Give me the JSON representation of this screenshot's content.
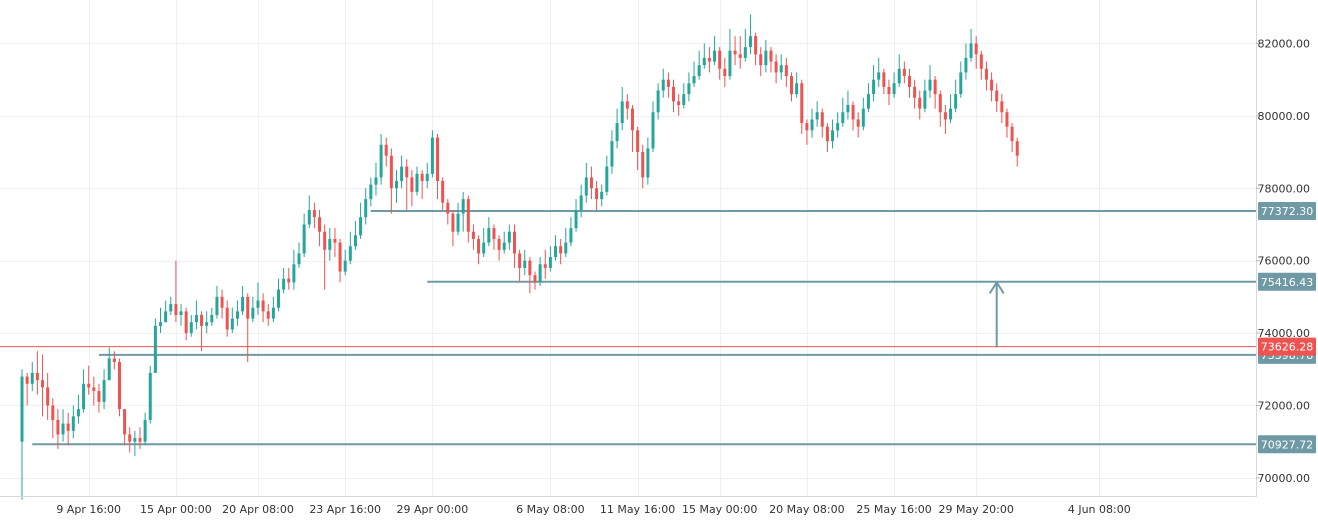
{
  "chart_data": {
    "type": "candlestick",
    "y_axis": {
      "min": 69500,
      "max": 83200,
      "ticks": [
        70000,
        72000,
        74000,
        76000,
        78000,
        80000,
        82000
      ],
      "tick_labels": [
        "70000.00",
        "72000.00",
        "74000.00",
        "76000.00",
        "78000.00",
        "80000.00",
        "82000.00"
      ],
      "position": "right"
    },
    "x_axis": {
      "ticks": [
        {
          "label": "9 Apr 16:00",
          "index": 13
        },
        {
          "label": "15 Apr 00:00",
          "index": 30
        },
        {
          "label": "20 Apr 08:00",
          "index": 46
        },
        {
          "label": "23 Apr 16:00",
          "index": 63
        },
        {
          "label": "29 Apr 00:00",
          "index": 80
        },
        {
          "label": "6 May 08:00",
          "index": 103
        },
        {
          "label": "11 May 16:00",
          "index": 120
        },
        {
          "label": "15 May 00:00",
          "index": 136
        },
        {
          "label": "20 May 08:00",
          "index": 153
        },
        {
          "label": "25 May 16:00",
          "index": 170
        },
        {
          "label": "29 May 20:00",
          "index": 186
        },
        {
          "label": "4 Jun 08:00",
          "index": 210
        }
      ]
    },
    "grid": true,
    "colors": {
      "up": "#26a69a",
      "down": "#ef5350",
      "level_line": "#6f9aa5",
      "current_price": "#ef5350",
      "grid": "#eef0f3",
      "axis_text": "#333333"
    },
    "horizontal_levels": [
      {
        "value": 77372.3,
        "label": "77372.30",
        "from_index": 68
      },
      {
        "value": 75416.43,
        "label": "75416.43",
        "from_index": 79
      },
      {
        "value": 73398.78,
        "label": "73398.78",
        "from_index": 15
      },
      {
        "value": 70927.72,
        "label": "70927.72",
        "from_index": 2
      }
    ],
    "current_price": {
      "value": 73626.28,
      "label": "73626.28"
    },
    "arrow": {
      "index": 190,
      "from": 73600,
      "to": 75400
    },
    "candles": [
      [
        71000,
        72800,
        73000,
        69400
      ],
      [
        72800,
        72600,
        72900,
        72000
      ],
      [
        72600,
        72900,
        73200,
        72400
      ],
      [
        72900,
        72700,
        73500,
        72300
      ],
      [
        72700,
        72500,
        73400,
        71700
      ],
      [
        72500,
        72000,
        72900,
        71600
      ],
      [
        72000,
        71600,
        72200,
        71100
      ],
      [
        71600,
        71200,
        71900,
        70800
      ],
      [
        71200,
        71500,
        71900,
        71000
      ],
      [
        71500,
        71300,
        71800,
        70900
      ],
      [
        71300,
        71700,
        72000,
        71100
      ],
      [
        71700,
        71900,
        72300,
        71500
      ],
      [
        71900,
        72600,
        73000,
        71800
      ],
      [
        72600,
        72500,
        73100,
        72300
      ],
      [
        72500,
        72400,
        72800,
        72000
      ],
      [
        72400,
        72100,
        72600,
        71800
      ],
      [
        72100,
        72700,
        73000,
        71900
      ],
      [
        72700,
        73300,
        73600,
        72700
      ],
      [
        73300,
        73200,
        73500,
        73000
      ],
      [
        73200,
        71900,
        73300,
        71700
      ],
      [
        71900,
        71200,
        71900,
        70900
      ],
      [
        71200,
        71000,
        71400,
        70700
      ],
      [
        71000,
        71100,
        71300,
        70600
      ],
      [
        71100,
        71000,
        71400,
        70800
      ],
      [
        71000,
        71600,
        71800,
        70900
      ],
      [
        71600,
        72900,
        73100,
        71500
      ],
      [
        72900,
        74200,
        74400,
        72900
      ],
      [
        74200,
        74300,
        74700,
        74000
      ],
      [
        74300,
        74600,
        74900,
        74300
      ],
      [
        74600,
        74800,
        75000,
        74500
      ],
      [
        74800,
        74500,
        76000,
        74300
      ],
      [
        74500,
        74600,
        74800,
        74200
      ],
      [
        74600,
        74000,
        74700,
        73800
      ],
      [
        74000,
        74300,
        74500,
        73900
      ],
      [
        74300,
        74500,
        74900,
        74100
      ],
      [
        74500,
        74200,
        74600,
        73500
      ],
      [
        74200,
        74300,
        74600,
        74000
      ],
      [
        74300,
        74500,
        74700,
        74200
      ],
      [
        74500,
        75000,
        75300,
        74400
      ],
      [
        75000,
        74700,
        75200,
        74400
      ],
      [
        74700,
        74100,
        74900,
        73900
      ],
      [
        74100,
        74400,
        74700,
        74000
      ],
      [
        74400,
        74600,
        74900,
        74200
      ],
      [
        74600,
        75000,
        75300,
        74500
      ],
      [
        75000,
        74400,
        75100,
        73200
      ],
      [
        74400,
        74700,
        75000,
        74300
      ],
      [
        74700,
        74900,
        75400,
        74500
      ],
      [
        74900,
        74600,
        75100,
        74300
      ],
      [
        74600,
        74400,
        74800,
        74200
      ],
      [
        74400,
        74700,
        75000,
        74300
      ],
      [
        74700,
        75200,
        75500,
        74600
      ],
      [
        75200,
        75500,
        75800,
        75100
      ],
      [
        75500,
        75400,
        75800,
        75200
      ],
      [
        75400,
        75900,
        76300,
        75200
      ],
      [
        75900,
        76200,
        76500,
        75800
      ],
      [
        76200,
        77000,
        77300,
        76100
      ],
      [
        77000,
        77400,
        77800,
        76900
      ],
      [
        77400,
        77200,
        77600,
        76900
      ],
      [
        77200,
        76800,
        77400,
        76400
      ],
      [
        76800,
        76300,
        77000,
        75200
      ],
      [
        76300,
        76600,
        76900,
        76000
      ],
      [
        76600,
        76500,
        76900,
        76100
      ],
      [
        76500,
        75700,
        76600,
        75400
      ],
      [
        75700,
        76000,
        76300,
        75600
      ],
      [
        76000,
        76400,
        76800,
        75900
      ],
      [
        76400,
        76700,
        77100,
        76300
      ],
      [
        76700,
        77200,
        77600,
        76600
      ],
      [
        77200,
        77700,
        78000,
        77000
      ],
      [
        77700,
        78100,
        78300,
        77500
      ],
      [
        78100,
        78300,
        78700,
        77800
      ],
      [
        78300,
        79200,
        79500,
        78100
      ],
      [
        79200,
        78900,
        79400,
        78600
      ],
      [
        78900,
        78000,
        79100,
        77300
      ],
      [
        78000,
        78200,
        78500,
        77600
      ],
      [
        78200,
        78600,
        78900,
        78000
      ],
      [
        78600,
        78300,
        78800,
        77400
      ],
      [
        78300,
        77900,
        78500,
        77500
      ],
      [
        77900,
        78400,
        78600,
        77800
      ],
      [
        78400,
        78200,
        78500,
        77700
      ],
      [
        78200,
        78400,
        78700,
        78000
      ],
      [
        78400,
        79400,
        79600,
        78300
      ],
      [
        79400,
        78200,
        79500,
        77700
      ],
      [
        78200,
        77600,
        78300,
        77400
      ],
      [
        77600,
        77300,
        77700,
        77000
      ],
      [
        77300,
        76800,
        77400,
        76400
      ],
      [
        76800,
        77300,
        77600,
        76700
      ],
      [
        77300,
        77700,
        77900,
        76800
      ],
      [
        77700,
        76800,
        77800,
        76500
      ],
      [
        76800,
        76600,
        77000,
        76300
      ],
      [
        76600,
        76200,
        76700,
        75900
      ],
      [
        76200,
        76500,
        76900,
        76100
      ],
      [
        76500,
        76900,
        77200,
        76400
      ],
      [
        76900,
        76600,
        77000,
        76300
      ],
      [
        76600,
        76300,
        76700,
        76000
      ],
      [
        76300,
        76500,
        76800,
        76200
      ],
      [
        76500,
        76800,
        77000,
        76300
      ],
      [
        76800,
        76200,
        77000,
        75800
      ],
      [
        76200,
        75800,
        76300,
        75400
      ],
      [
        75800,
        76000,
        76300,
        75600
      ],
      [
        76000,
        75600,
        76100,
        75100
      ],
      [
        75600,
        75400,
        75700,
        75200
      ],
      [
        75400,
        75900,
        76100,
        75300
      ],
      [
        75900,
        75800,
        76300,
        75500
      ],
      [
        75800,
        76100,
        76400,
        75700
      ],
      [
        76100,
        76400,
        76700,
        76000
      ],
      [
        76400,
        76200,
        76600,
        75900
      ],
      [
        76200,
        76500,
        76900,
        76100
      ],
      [
        76500,
        76900,
        77200,
        76400
      ],
      [
        76900,
        77400,
        77700,
        76800
      ],
      [
        77400,
        77800,
        78100,
        77200
      ],
      [
        77800,
        78300,
        78700,
        77600
      ],
      [
        78300,
        78000,
        78600,
        77700
      ],
      [
        78000,
        77700,
        78200,
        77400
      ],
      [
        77700,
        77900,
        78100,
        77500
      ],
      [
        77900,
        78600,
        78900,
        77800
      ],
      [
        78600,
        79300,
        79600,
        78400
      ],
      [
        79300,
        79800,
        80200,
        79100
      ],
      [
        79800,
        80400,
        80800,
        79600
      ],
      [
        80400,
        80200,
        80600,
        79900
      ],
      [
        80200,
        79600,
        80300,
        79000
      ],
      [
        79600,
        79000,
        79700,
        78500
      ],
      [
        79000,
        78300,
        79200,
        78000
      ],
      [
        78300,
        79100,
        79400,
        78100
      ],
      [
        79100,
        80100,
        80400,
        79000
      ],
      [
        80100,
        80700,
        80900,
        79900
      ],
      [
        80700,
        81000,
        81300,
        80500
      ],
      [
        81000,
        80800,
        81200,
        80500
      ],
      [
        80800,
        80400,
        81000,
        80100
      ],
      [
        80400,
        80300,
        80600,
        80000
      ],
      [
        80300,
        80600,
        80900,
        80200
      ],
      [
        80600,
        80900,
        81200,
        80400
      ],
      [
        80900,
        81100,
        81500,
        80800
      ],
      [
        81100,
        81400,
        81800,
        81000
      ],
      [
        81400,
        81600,
        82000,
        81300
      ],
      [
        81600,
        81500,
        81900,
        81200
      ],
      [
        81500,
        81800,
        82200,
        81400
      ],
      [
        81800,
        81300,
        81900,
        81000
      ],
      [
        81300,
        81100,
        81600,
        80800
      ],
      [
        81100,
        81800,
        82400,
        81000
      ],
      [
        81800,
        81700,
        82200,
        81400
      ],
      [
        81700,
        81600,
        82200,
        81300
      ],
      [
        81600,
        81900,
        82400,
        81500
      ],
      [
        81900,
        82200,
        82800,
        81700
      ],
      [
        82200,
        81700,
        82300,
        81400
      ],
      [
        81700,
        81400,
        81900,
        81100
      ],
      [
        81400,
        81800,
        82100,
        81200
      ],
      [
        81800,
        81500,
        81900,
        81200
      ],
      [
        81500,
        81200,
        81700,
        80900
      ],
      [
        81200,
        81400,
        81700,
        81000
      ],
      [
        81400,
        81100,
        81600,
        80800
      ],
      [
        81100,
        80600,
        81200,
        80400
      ],
      [
        80600,
        80900,
        81200,
        80500
      ],
      [
        80900,
        79800,
        81000,
        79500
      ],
      [
        79800,
        79600,
        79900,
        79200
      ],
      [
        79600,
        79900,
        80200,
        79400
      ],
      [
        79900,
        80100,
        80400,
        79700
      ],
      [
        80100,
        79700,
        80200,
        79400
      ],
      [
        79700,
        79300,
        79800,
        79000
      ],
      [
        79300,
        79600,
        79900,
        79100
      ],
      [
        79600,
        79800,
        80100,
        79400
      ],
      [
        79800,
        80100,
        80500,
        79700
      ],
      [
        80100,
        80300,
        80700,
        79900
      ],
      [
        80300,
        79900,
        80400,
        79600
      ],
      [
        79900,
        79700,
        80100,
        79400
      ],
      [
        79700,
        80200,
        80500,
        79600
      ],
      [
        80200,
        80600,
        80900,
        80100
      ],
      [
        80600,
        81000,
        81400,
        80400
      ],
      [
        81000,
        81200,
        81600,
        80800
      ],
      [
        81200,
        80800,
        81300,
        80600
      ],
      [
        80800,
        80600,
        81000,
        80300
      ],
      [
        80600,
        80900,
        81200,
        80500
      ],
      [
        80900,
        81300,
        81700,
        80800
      ],
      [
        81300,
        81100,
        81500,
        80900
      ],
      [
        81100,
        80800,
        81300,
        80500
      ],
      [
        80800,
        80500,
        81000,
        80200
      ],
      [
        80500,
        80200,
        80700,
        79900
      ],
      [
        80200,
        80700,
        81000,
        80100
      ],
      [
        80700,
        81000,
        81400,
        80500
      ],
      [
        81000,
        80600,
        81100,
        80200
      ],
      [
        80600,
        80100,
        80700,
        79700
      ],
      [
        80100,
        79900,
        80300,
        79500
      ],
      [
        79900,
        80200,
        80600,
        79800
      ],
      [
        80200,
        80600,
        81000,
        80100
      ],
      [
        80600,
        81200,
        81500,
        80500
      ],
      [
        81200,
        81600,
        82000,
        81000
      ],
      [
        81600,
        82000,
        82400,
        81500
      ],
      [
        82000,
        81700,
        82200,
        81300
      ],
      [
        81700,
        81300,
        81800,
        81000
      ],
      [
        81300,
        81000,
        81500,
        80700
      ],
      [
        81000,
        80700,
        81200,
        80400
      ],
      [
        80700,
        80400,
        80900,
        80100
      ],
      [
        80400,
        80100,
        80600,
        79800
      ],
      [
        80100,
        79700,
        80200,
        79400
      ],
      [
        79700,
        79300,
        79800,
        79000
      ],
      [
        79300,
        78900,
        79400,
        78600
      ]
    ]
  }
}
